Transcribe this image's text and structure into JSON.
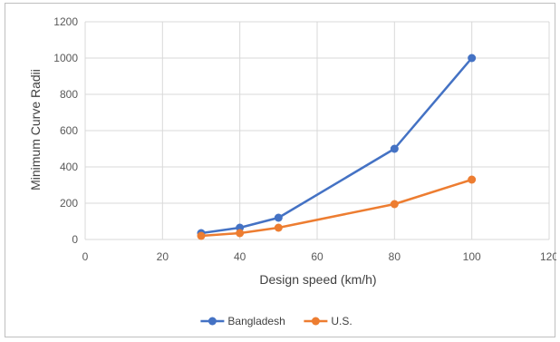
{
  "chart_data": {
    "type": "line",
    "title": "",
    "xlabel": "Design speed (km/h)",
    "ylabel": "Minimum Curve Radii",
    "xlim": [
      0,
      120
    ],
    "ylim": [
      0,
      1200
    ],
    "xticks": [
      0,
      20,
      40,
      60,
      80,
      100,
      120
    ],
    "yticks": [
      0,
      200,
      400,
      600,
      800,
      1000,
      1200
    ],
    "grid": true,
    "legend_position": "bottom",
    "series": [
      {
        "name": "Bangladesh",
        "color": "#4472c4",
        "x": [
          30,
          40,
          50,
          80,
          100
        ],
        "y": [
          35,
          65,
          120,
          500,
          1000
        ]
      },
      {
        "name": "U.S.",
        "color": "#ed7d31",
        "x": [
          30,
          40,
          50,
          80,
          100
        ],
        "y": [
          20,
          35,
          65,
          195,
          330
        ]
      }
    ]
  }
}
